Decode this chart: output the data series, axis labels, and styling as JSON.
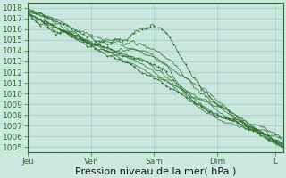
{
  "xlabel": "Pression niveau de la mer( hPa )",
  "ylim": [
    1004.5,
    1018.5
  ],
  "yticks": [
    1005,
    1006,
    1007,
    1008,
    1009,
    1010,
    1011,
    1012,
    1013,
    1014,
    1015,
    1016,
    1017,
    1018
  ],
  "day_labels": [
    "Jeu",
    "Ven",
    "Sam",
    "Dim",
    "L"
  ],
  "day_positions": [
    0,
    96,
    192,
    288,
    376
  ],
  "total_points": 390,
  "bg_color": "#cce8e0",
  "grid_color_major": "#aacfc8",
  "grid_color_minor": "#bcdcd6",
  "line_color": "#2d6e2d",
  "xlabel_fontsize": 8,
  "tick_fontsize": 6.5
}
